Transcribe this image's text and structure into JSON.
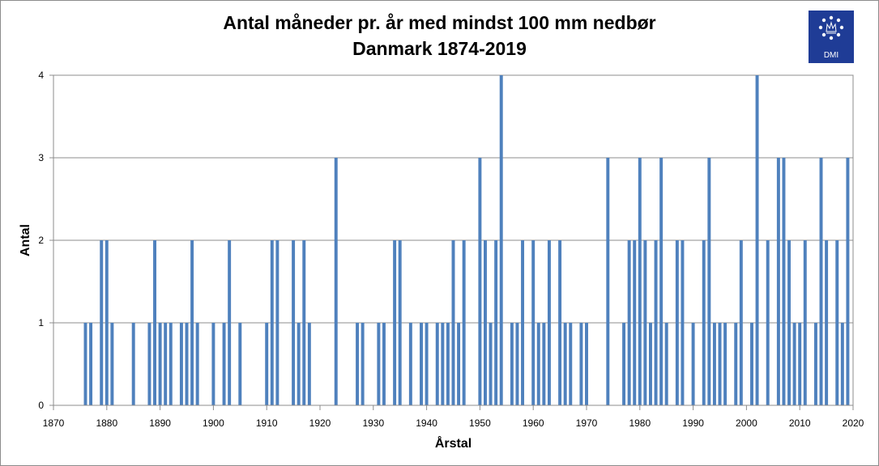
{
  "logo": {
    "text": "DMI",
    "icon": "crown-stars-icon",
    "color": "#1f3c96"
  },
  "chart_data": {
    "type": "bar",
    "title": "Antal måneder pr. år med mindst 100 mm nedbør",
    "subtitle": "Danmark 1874-2019",
    "xlabel": "Årstal",
    "ylabel": "Antal",
    "xlim": [
      1870,
      2020
    ],
    "ylim": [
      0,
      4
    ],
    "x_ticks": [
      1870,
      1880,
      1890,
      1900,
      1910,
      1920,
      1930,
      1940,
      1950,
      1960,
      1970,
      1980,
      1990,
      2000,
      2010,
      2020
    ],
    "y_ticks": [
      0,
      1,
      2,
      3,
      4
    ],
    "grid": "horizontal",
    "bar_color": "#4f81bd",
    "x": [
      1876,
      1877,
      1879,
      1880,
      1881,
      1885,
      1888,
      1889,
      1890,
      1891,
      1892,
      1894,
      1895,
      1896,
      1897,
      1900,
      1902,
      1903,
      1905,
      1910,
      1911,
      1912,
      1915,
      1916,
      1917,
      1918,
      1923,
      1927,
      1928,
      1931,
      1932,
      1934,
      1935,
      1937,
      1939,
      1940,
      1942,
      1943,
      1944,
      1945,
      1946,
      1947,
      1950,
      1951,
      1952,
      1953,
      1954,
      1956,
      1957,
      1958,
      1960,
      1961,
      1962,
      1963,
      1965,
      1966,
      1967,
      1969,
      1970,
      1974,
      1977,
      1978,
      1979,
      1980,
      1981,
      1982,
      1983,
      1984,
      1985,
      1987,
      1988,
      1990,
      1992,
      1993,
      1994,
      1995,
      1996,
      1998,
      1999,
      2001,
      2002,
      2004,
      2006,
      2007,
      2008,
      2009,
      2010,
      2011,
      2013,
      2014,
      2015,
      2017,
      2018,
      2019
    ],
    "values": [
      1,
      1,
      2,
      2,
      1,
      1,
      1,
      2,
      1,
      1,
      1,
      1,
      1,
      2,
      1,
      1,
      1,
      2,
      1,
      1,
      2,
      2,
      2,
      1,
      2,
      1,
      3,
      1,
      1,
      1,
      1,
      2,
      2,
      1,
      1,
      1,
      1,
      1,
      1,
      2,
      1,
      2,
      3,
      2,
      1,
      2,
      4,
      1,
      1,
      2,
      2,
      1,
      1,
      2,
      2,
      1,
      1,
      1,
      1,
      3,
      1,
      2,
      2,
      3,
      2,
      1,
      2,
      3,
      1,
      2,
      2,
      1,
      2,
      3,
      1,
      1,
      1,
      1,
      2,
      1,
      4,
      2,
      3,
      3,
      2,
      1,
      1,
      2,
      1,
      3,
      2,
      2,
      1,
      3
    ]
  }
}
